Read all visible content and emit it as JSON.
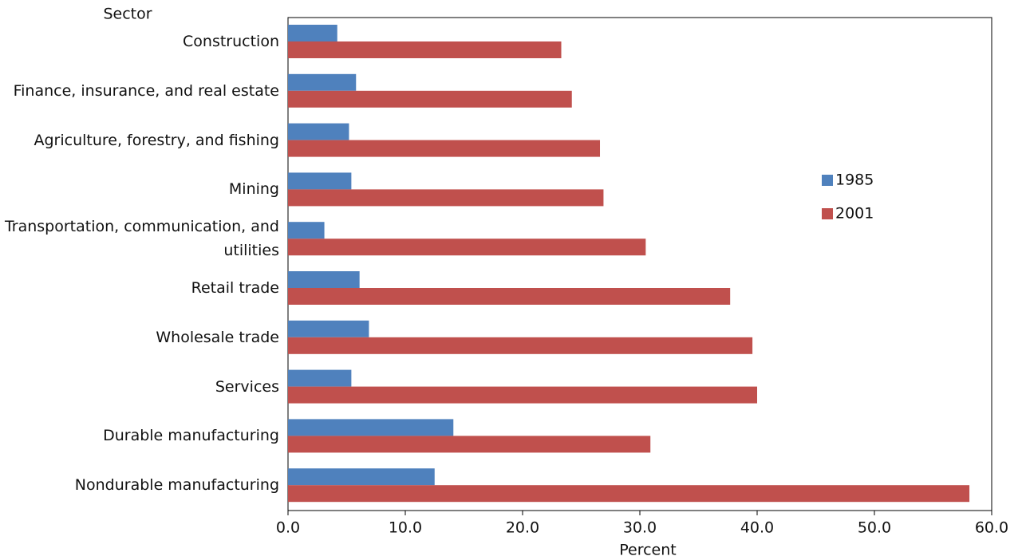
{
  "chart_data": {
    "type": "barh",
    "y_label": "Sector",
    "x_label": "Percent",
    "categories": [
      "Construction",
      "Finance, insurance, and real estate",
      "Agriculture, forestry, and fishing",
      "Mining",
      "Transportation, communication, and utilities",
      "Retail trade",
      "Wholesale trade",
      "Services",
      "Durable manufacturing",
      "Nondurable manufacturing"
    ],
    "series": [
      {
        "name": "1985",
        "color": "#4f81bd",
        "values": [
          4.2,
          5.8,
          5.2,
          5.4,
          3.1,
          6.1,
          6.9,
          5.4,
          14.1,
          12.5
        ]
      },
      {
        "name": "2001",
        "color": "#c0504d",
        "values": [
          23.3,
          24.2,
          26.6,
          26.9,
          30.5,
          37.7,
          39.6,
          40.0,
          30.9,
          58.1
        ]
      }
    ],
    "xlim": [
      0,
      60
    ],
    "xticks": [
      {
        "value": 0,
        "label": "0.0"
      },
      {
        "value": 10,
        "label": "10.0"
      },
      {
        "value": 20,
        "label": "20.0"
      },
      {
        "value": 30,
        "label": "30.0"
      },
      {
        "value": 40,
        "label": "40.0"
      },
      {
        "value": 50,
        "label": "50.0"
      },
      {
        "value": 60,
        "label": "60.0"
      }
    ],
    "grid": false
  }
}
